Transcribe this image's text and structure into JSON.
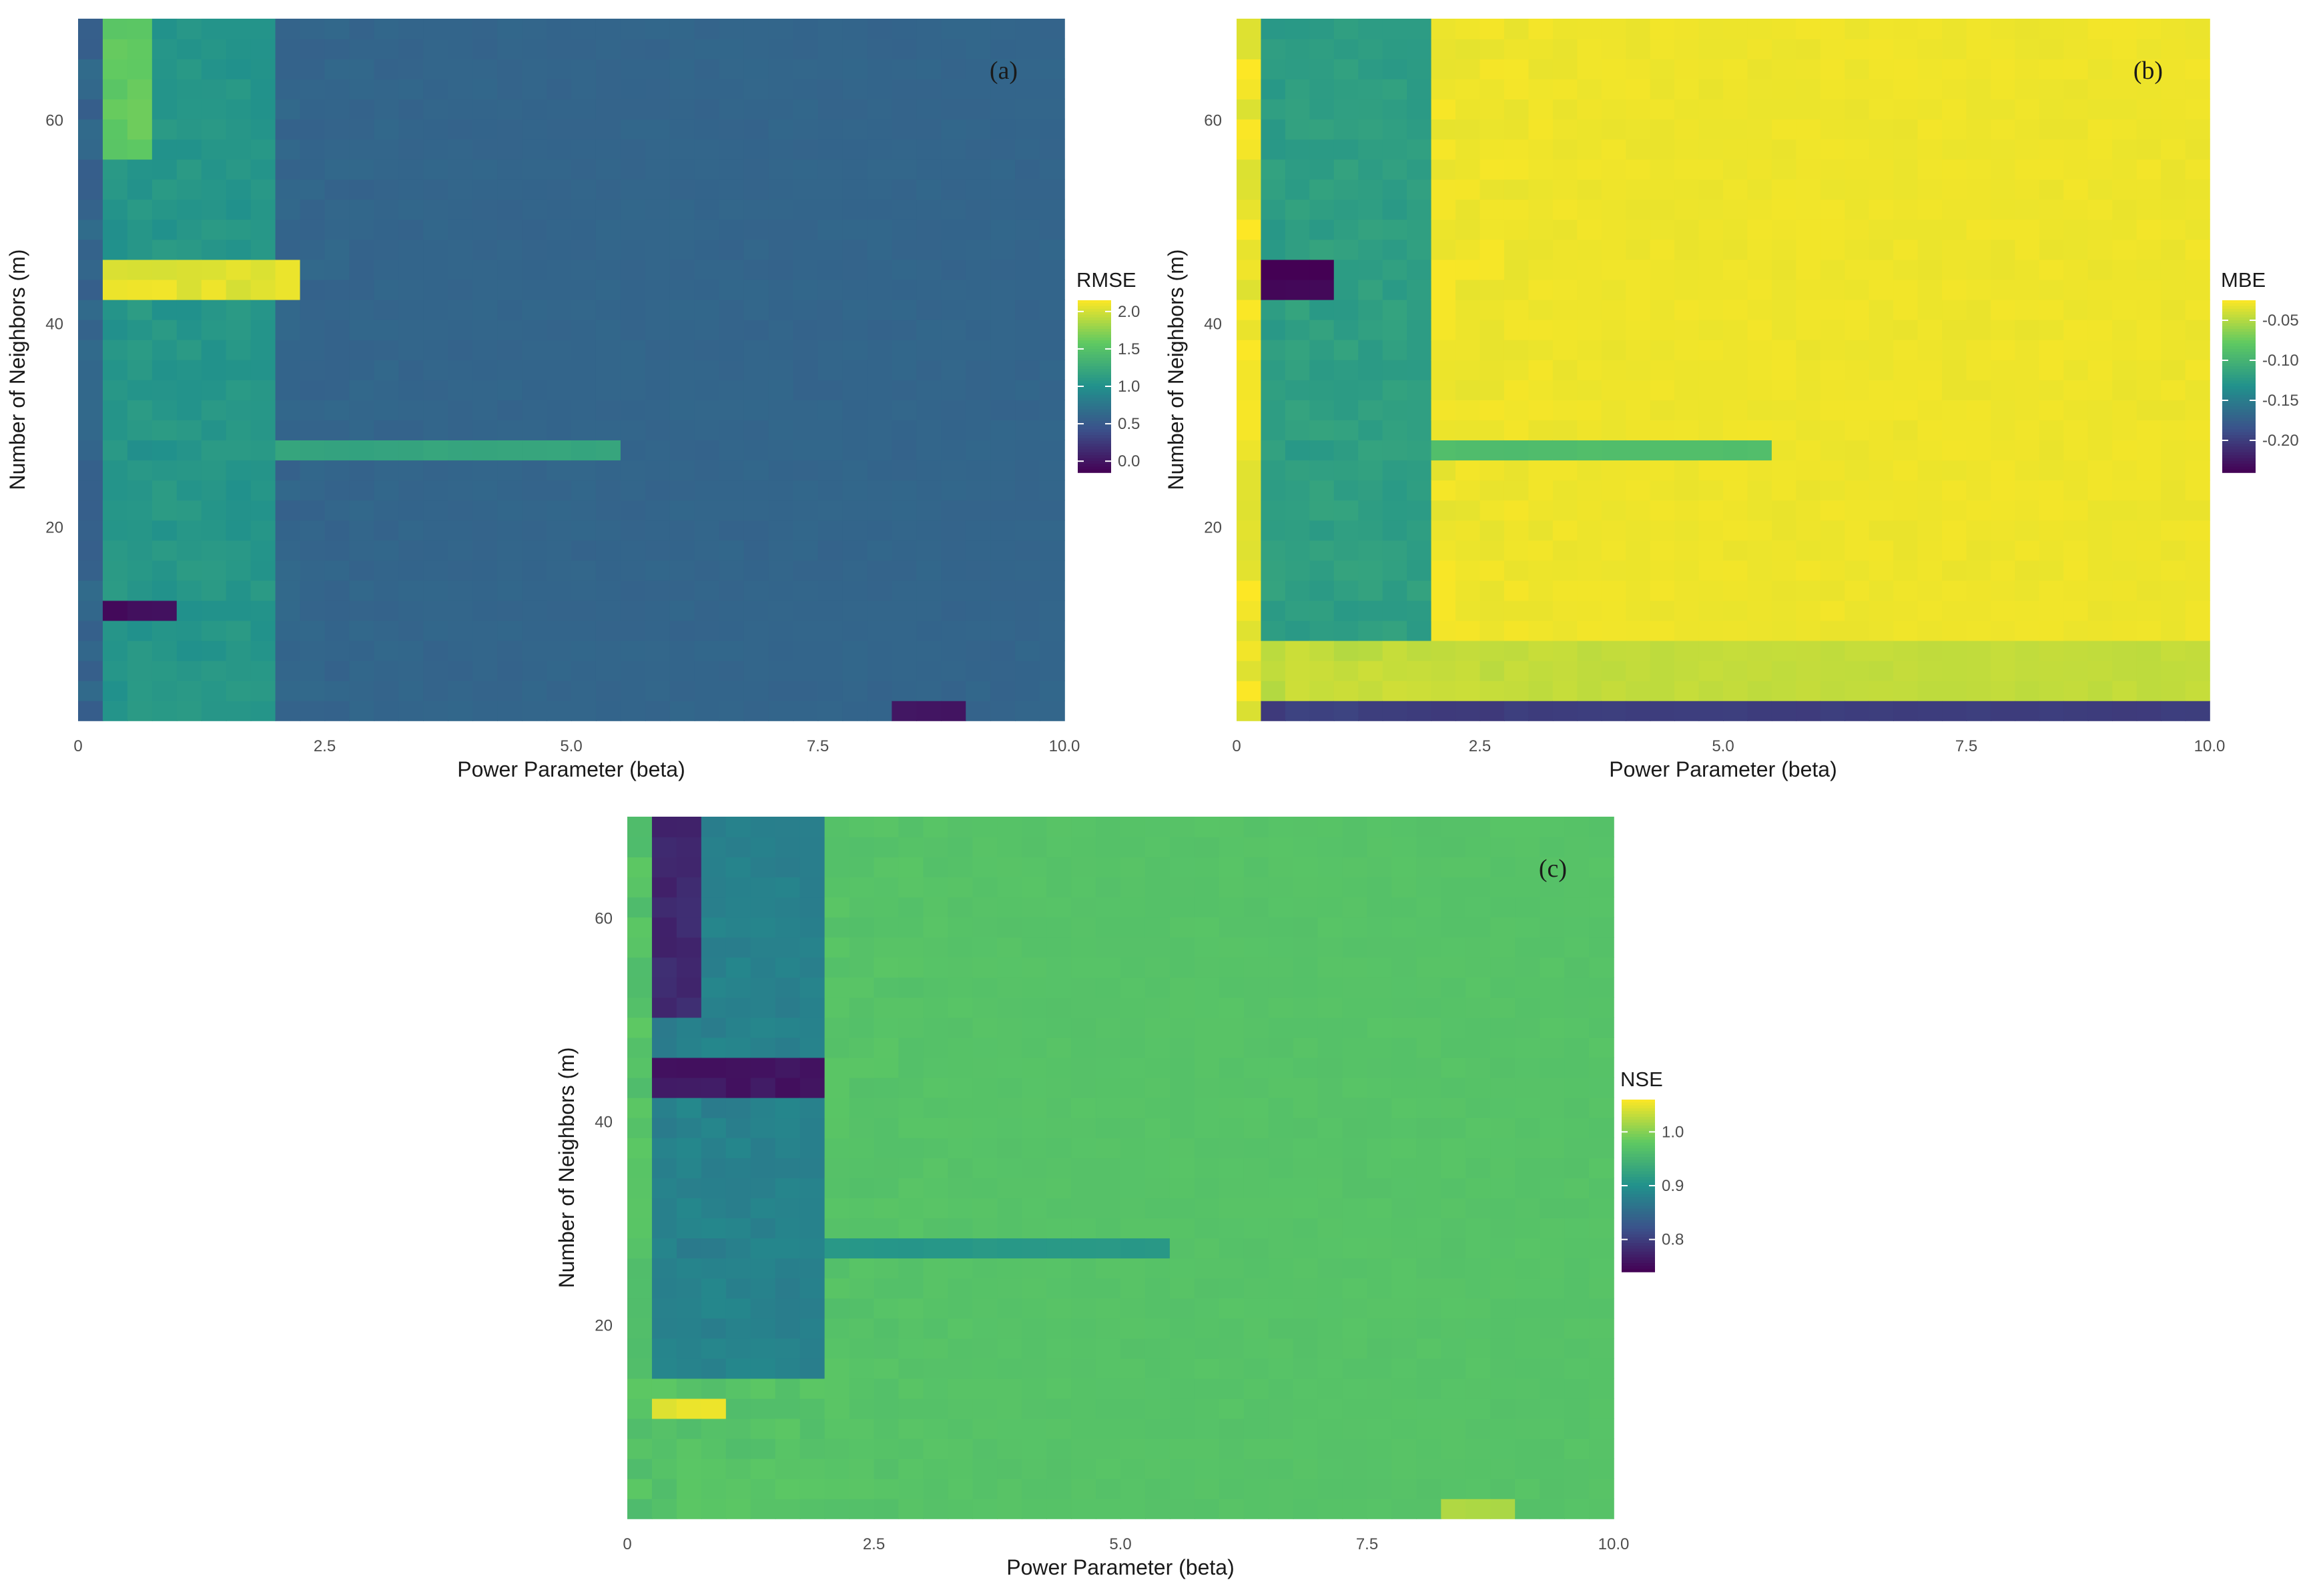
{
  "figure": {
    "colormap": [
      "#440154",
      "#3b528b",
      "#21918c",
      "#5ec962",
      "#fde725"
    ]
  },
  "chart_data": [
    {
      "type": "heatmap",
      "panel": "(a)",
      "xlabel": "Power Parameter (beta)",
      "ylabel": "Number of Neighbors (m)",
      "xlim": [
        0,
        10
      ],
      "ylim": [
        1,
        70
      ],
      "xticks": [
        "0",
        "2.5",
        "5.0",
        "7.5",
        "10.0"
      ],
      "yticks": [
        "20",
        "40",
        "60"
      ],
      "legend": {
        "title": "RMSE",
        "ticks": [
          "2.0",
          "1.5",
          "1.0",
          "0.5",
          "0.0"
        ],
        "range": [
          -0.15,
          2.15
        ]
      },
      "base_value": 0.6,
      "features": [
        {
          "beta": [
            0.25,
            2.0
          ],
          "m": [
            1,
            70
          ],
          "value": 1.05
        },
        {
          "beta": [
            0.25,
            0.75
          ],
          "m": [
            56,
            70
          ],
          "value": 1.6
        },
        {
          "beta": [
            0.25,
            2.25
          ],
          "m": [
            42,
            47
          ],
          "value": 2.05
        },
        {
          "beta": [
            2.0,
            5.5
          ],
          "m": [
            26,
            29
          ],
          "value": 1.2
        },
        {
          "beta": [
            0.25,
            1.0
          ],
          "m": [
            10,
            12
          ],
          "value": -0.05
        },
        {
          "beta": [
            8.25,
            9.0
          ],
          "m": [
            1,
            2
          ],
          "value": 0.0
        }
      ]
    },
    {
      "type": "heatmap",
      "panel": "(b)",
      "xlabel": "Power Parameter (beta)",
      "ylabel": "Number of Neighbors (m)",
      "xlim": [
        0,
        10
      ],
      "ylim": [
        1,
        70
      ],
      "xticks": [
        "0",
        "2.5",
        "5.0",
        "7.5",
        "10.0"
      ],
      "yticks": [
        "20",
        "40",
        "60"
      ],
      "legend": {
        "title": "MBE",
        "ticks": [
          "-0.05",
          "-0.10",
          "-0.15",
          "-0.20"
        ],
        "range": [
          -0.24,
          -0.025
        ]
      },
      "base_value": -0.03,
      "features": [
        {
          "beta": [
            0.25,
            2.0
          ],
          "m": [
            1,
            70
          ],
          "value": -0.12
        },
        {
          "beta": [
            0.25,
            1.0
          ],
          "m": [
            42,
            46
          ],
          "value": -0.24
        },
        {
          "beta": [
            2.0,
            5.5
          ],
          "m": [
            26,
            29
          ],
          "value": -0.09
        },
        {
          "beta": [
            0.25,
            10.0
          ],
          "m": [
            1,
            2
          ],
          "value": -0.2
        },
        {
          "beta": [
            0.25,
            10.0
          ],
          "m": [
            3,
            9
          ],
          "value": -0.045
        }
      ]
    },
    {
      "type": "heatmap",
      "panel": "(c)",
      "xlabel": "Power Parameter (beta)",
      "ylabel": "Number of Neighbors (m)",
      "xlim": [
        0,
        10
      ],
      "ylim": [
        1,
        70
      ],
      "xticks": [
        "0",
        "2.5",
        "5.0",
        "7.5",
        "10.0"
      ],
      "yticks": [
        "20",
        "40",
        "60"
      ],
      "legend": {
        "title": "NSE",
        "ticks": [
          "1.0",
          "0.9",
          "0.8"
        ],
        "range": [
          0.74,
          1.06
        ]
      },
      "base_value": 0.97,
      "features": [
        {
          "beta": [
            0.25,
            2.0
          ],
          "m": [
            14,
            70
          ],
          "value": 0.88
        },
        {
          "beta": [
            0.25,
            0.75
          ],
          "m": [
            50,
            70
          ],
          "value": 0.78
        },
        {
          "beta": [
            0.25,
            2.0
          ],
          "m": [
            42,
            47
          ],
          "value": 0.76
        },
        {
          "beta": [
            2.0,
            5.5
          ],
          "m": [
            26,
            29
          ],
          "value": 0.91
        },
        {
          "beta": [
            0.25,
            1.0
          ],
          "m": [
            10,
            12
          ],
          "value": 1.05
        },
        {
          "beta": [
            8.25,
            9.0
          ],
          "m": [
            1,
            2
          ],
          "value": 1.02
        }
      ]
    }
  ]
}
